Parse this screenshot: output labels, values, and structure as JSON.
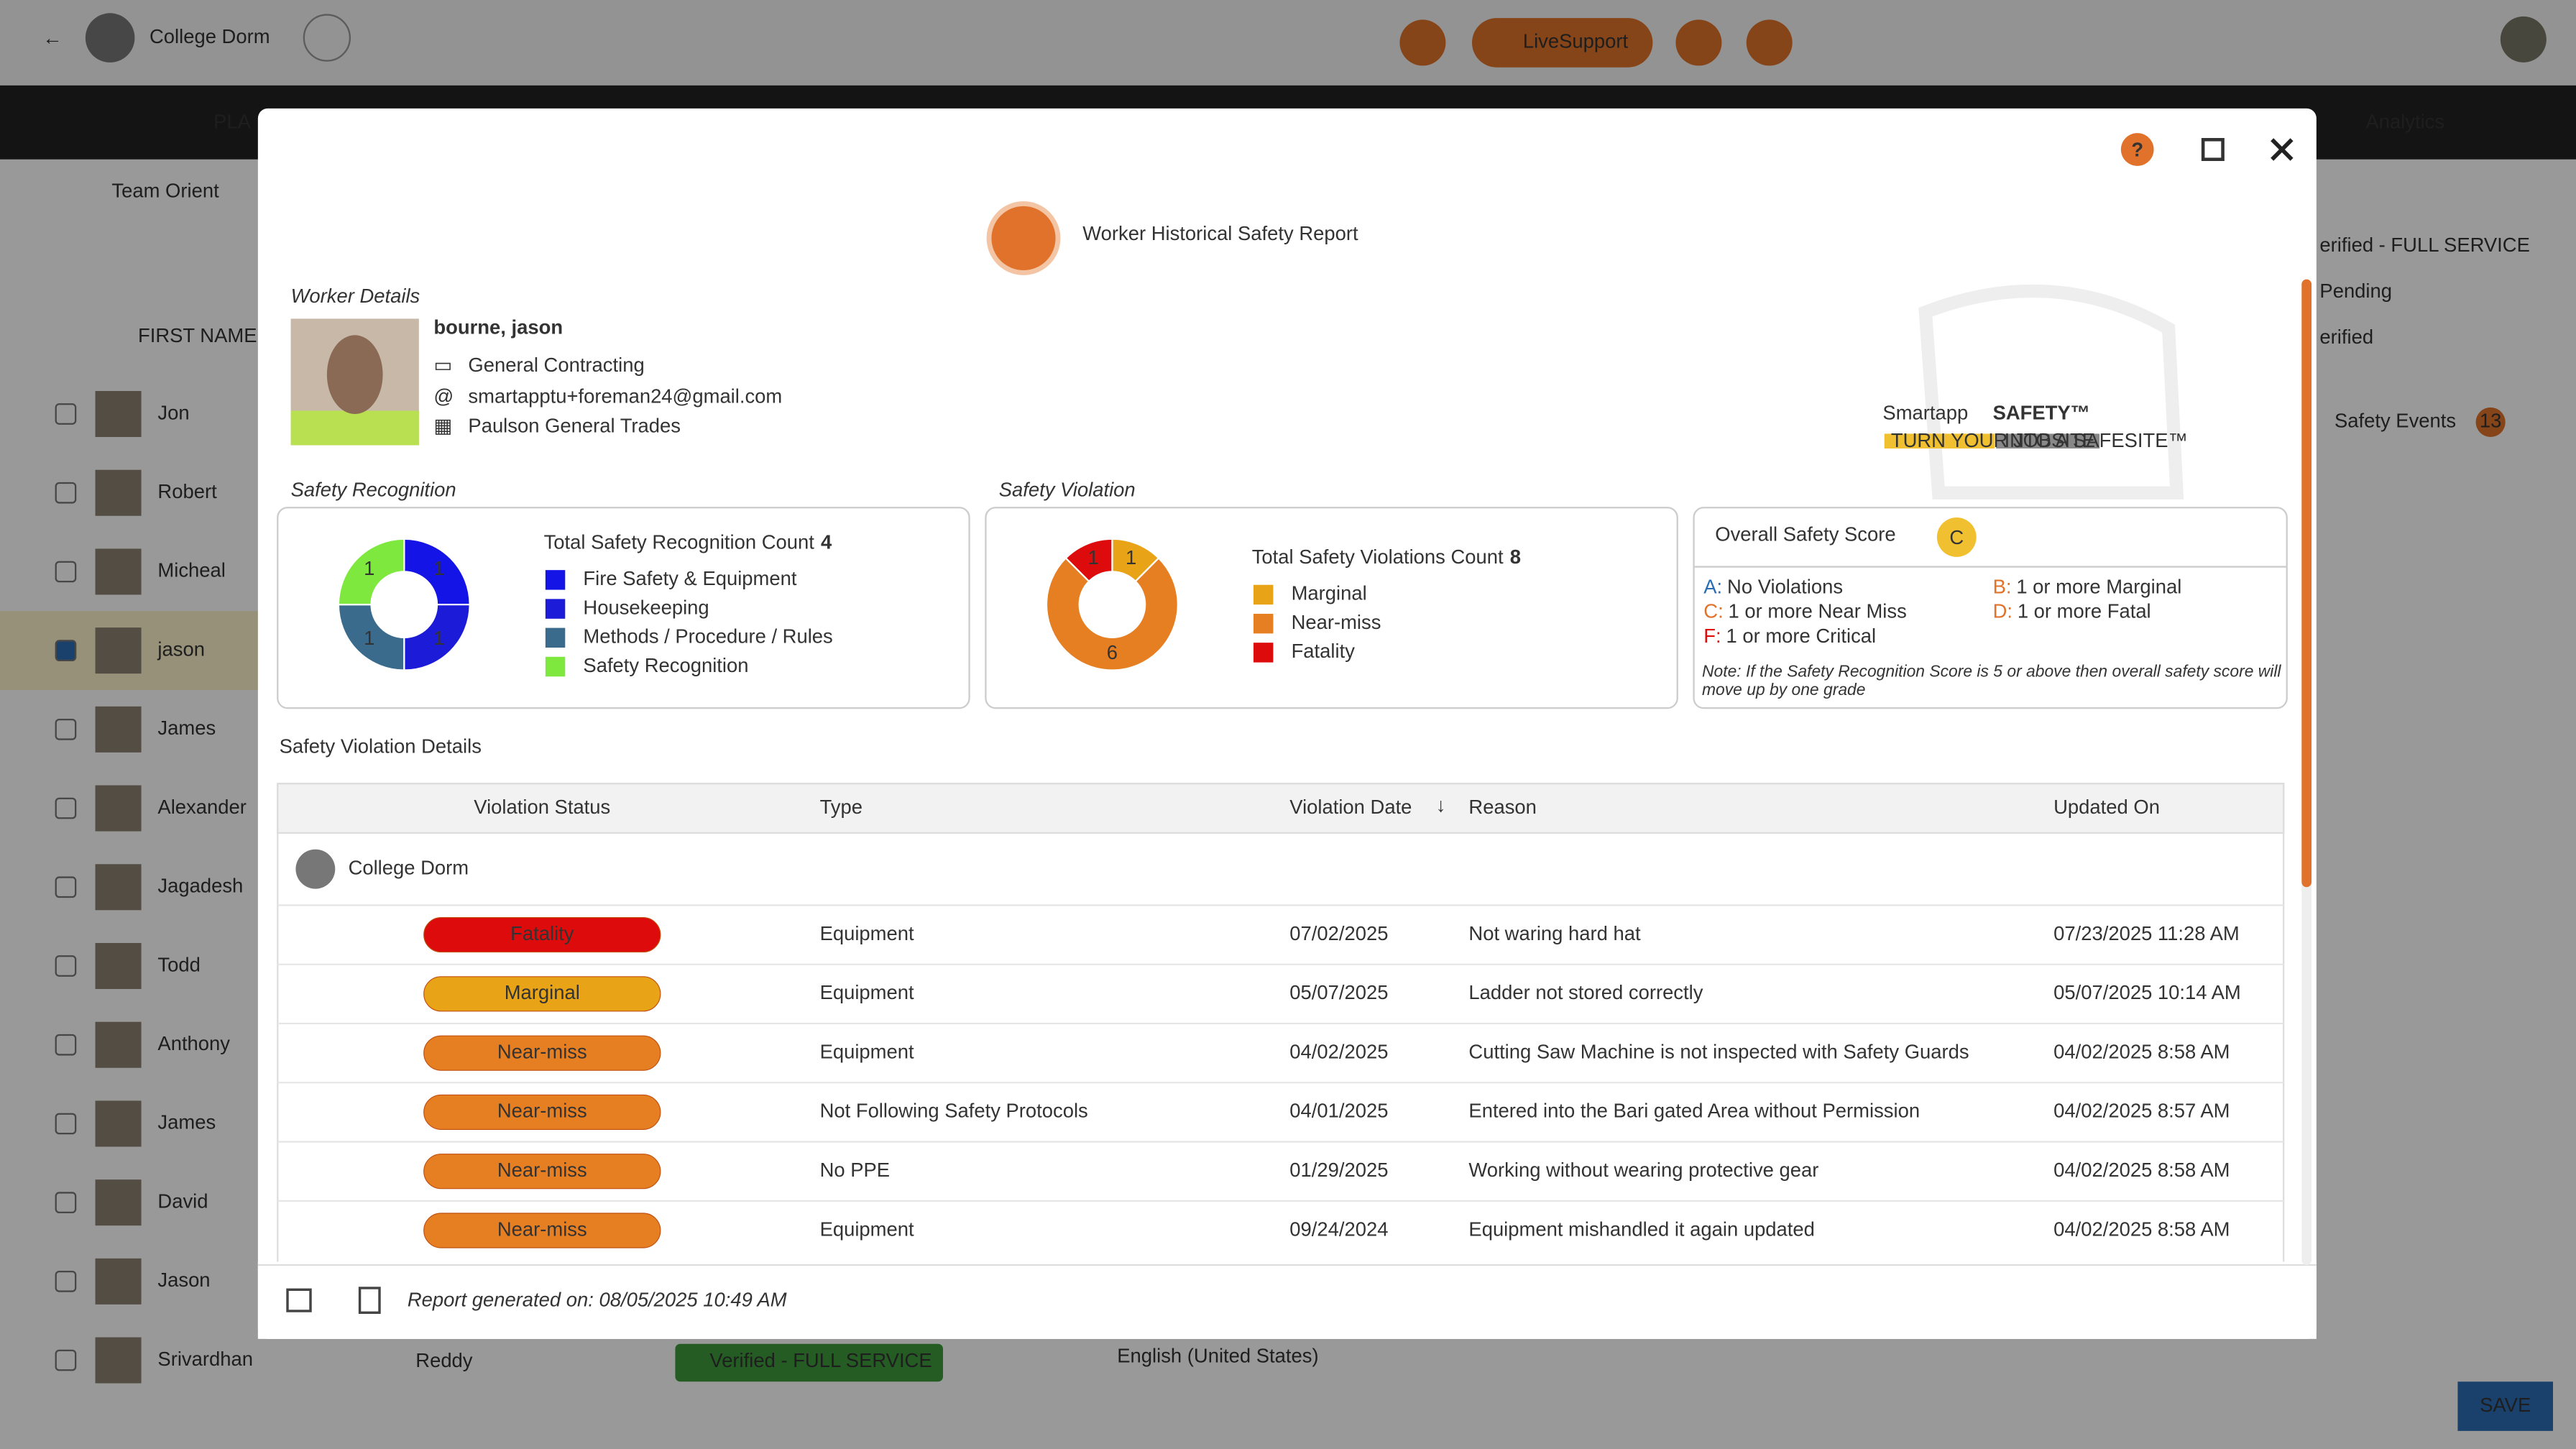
{
  "app_bar": {
    "project": "College Dorm",
    "live_support": "LiveSupport"
  },
  "nav": {
    "tabs": [
      "PLA",
      "Analytics"
    ]
  },
  "background": {
    "breadcrumb": "Team Orient",
    "column": "FIRST NAME",
    "workers": [
      "Jon",
      "Robert",
      "Micheal",
      "jason",
      "James",
      "Alexander",
      "Jagadesh",
      "Todd",
      "Anthony",
      "James",
      "David",
      "Jason",
      "Srivardhan"
    ],
    "last_row": {
      "last_name": "Reddy",
      "status": "Verified - FULL SERVICE"
    },
    "side_statuses": [
      "erified - FULL SERVICE",
      "Pending",
      "erified"
    ],
    "safety_events": "Safety Events",
    "safety_events_count": "13",
    "language": "English (United States)",
    "save": "SAVE"
  },
  "modal": {
    "title": "Worker Historical Safety Report",
    "worker": {
      "section": "Worker Details",
      "name": "bourne, jason",
      "trade": "General Contracting",
      "email": "smartapptu+foreman24@gmail.com",
      "company": "Paulson General Trades"
    },
    "logo": {
      "name": "Smartapp",
      "accent": "SAFETY™",
      "tag1": "TURN YOUR JOBSITE",
      "tag2": "INTO A SAFESITE™"
    },
    "overall": {
      "title": "Overall Safety Score",
      "grade": "C",
      "grades": [
        {
          "letter": "A:",
          "text": "No Violations"
        },
        {
          "letter": "B:",
          "text": "1 or more Marginal"
        },
        {
          "letter": "C:",
          "text": "1 or more Near Miss"
        },
        {
          "letter": "D:",
          "text": "1 or more Fatal"
        },
        {
          "letter": "F:",
          "text": "1 or more Critical"
        }
      ],
      "note": "Note: If the Safety Recognition Score is 5 or above then overall safety score will move up by one grade"
    },
    "details_title": "Safety Violation Details",
    "table": {
      "headers": [
        "Violation Status",
        "Type",
        "Violation Date",
        "Reason",
        "Updated On"
      ],
      "group": "College Dorm",
      "rows": [
        [
          "Fatality",
          "Equipment",
          "07/02/2025",
          "Not waring hard hat",
          "07/23/2025 11:28 AM"
        ],
        [
          "Marginal",
          "Equipment",
          "05/07/2025",
          "Ladder not stored correctly",
          "05/07/2025 10:14 AM"
        ],
        [
          "Near-miss",
          "Equipment",
          "04/02/2025",
          "Cutting Saw Machine is not inspected with Safety Guards",
          "04/02/2025 8:58 AM"
        ],
        [
          "Near-miss",
          "Not Following Safety Protocols",
          "04/01/2025",
          "Entered into the Bari gated Area without Permission",
          "04/02/2025 8:57 AM"
        ],
        [
          "Near-miss",
          "No PPE",
          "01/29/2025",
          "Working without wearing protective gear",
          "04/02/2025 8:58 AM"
        ],
        [
          "Near-miss",
          "Equipment",
          "09/24/2024",
          "Equipment mishandled it again updated",
          "04/02/2025 8:58 AM"
        ]
      ]
    },
    "footer": "Report generated on: 08/05/2025 10:49 AM"
  },
  "chart_data": [
    {
      "type": "donut",
      "title": "Safety Recognition",
      "total_label": "Total Safety Recognition Count",
      "total": 4,
      "categories": [
        "Fire Safety & Equipment",
        "Housekeeping",
        "Methods / Procedure / Rules",
        "Safety Recognition"
      ],
      "values": [
        1,
        1,
        1,
        1
      ],
      "colors": [
        "#1414e6",
        "#1c1cd8",
        "#3a6b8c",
        "#7ee83f"
      ]
    },
    {
      "type": "donut",
      "title": "Safety Violation",
      "total_label": "Total Safety Violations Count",
      "total": 8,
      "categories": [
        "Marginal",
        "Near-miss",
        "Fatality"
      ],
      "values": [
        1,
        6,
        1
      ],
      "colors": [
        "#e8a317",
        "#e67e22",
        "#dd0b0b"
      ]
    }
  ]
}
